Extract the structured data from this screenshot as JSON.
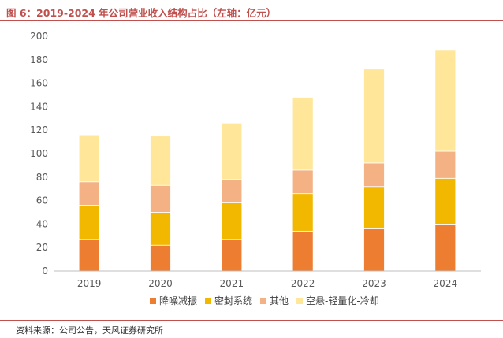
{
  "title": "图 6：2019-2024 年公司营业收入结构占比（左轴：亿元）",
  "source": "资料来源：公司公告，天风证券研究所",
  "chart_data": {
    "type": "bar",
    "stacked": true,
    "categories": [
      "2019",
      "2020",
      "2021",
      "2022",
      "2023",
      "2024"
    ],
    "ylim": [
      0,
      200
    ],
    "yticks": [
      0,
      20,
      40,
      60,
      80,
      100,
      120,
      140,
      160,
      180,
      200
    ],
    "grid": false,
    "legend_position": "bottom",
    "series": [
      {
        "name": "降噪减振",
        "color": "#ed7d31",
        "values": [
          27,
          22,
          27,
          34,
          36,
          40
        ]
      },
      {
        "name": "密封系统",
        "color": "#f2b800",
        "values": [
          29,
          28,
          31,
          32,
          36,
          39
        ]
      },
      {
        "name": "其他",
        "color": "#f4b183",
        "values": [
          20,
          23,
          20,
          20,
          20,
          23
        ]
      },
      {
        "name": "空悬-轻量化-冷却",
        "color": "#ffe699",
        "values": [
          40,
          42,
          48,
          62,
          80,
          86
        ]
      }
    ]
  }
}
